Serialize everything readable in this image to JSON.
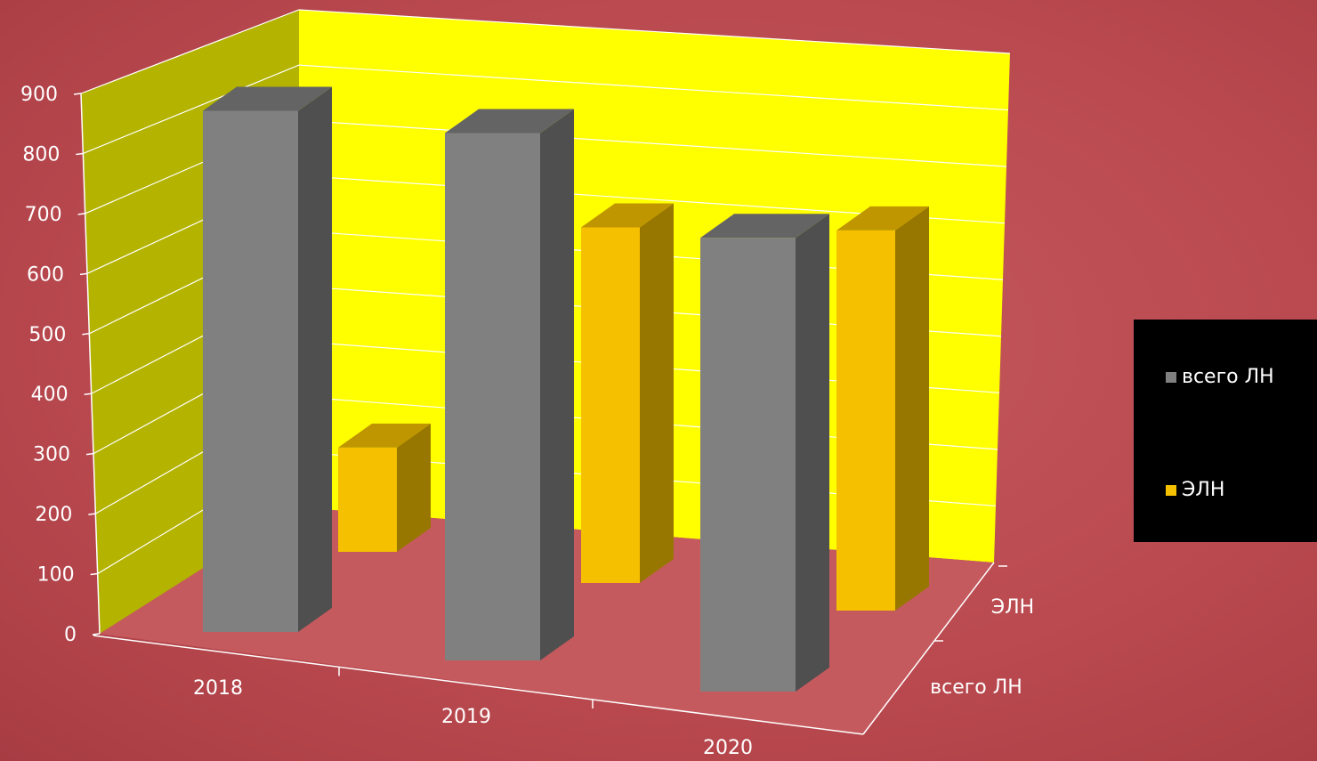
{
  "chart_data": {
    "type": "bar",
    "categories": [
      "2018",
      "2019",
      "2020"
    ],
    "series": [
      {
        "name": "всего ЛН",
        "values": [
          850,
          860,
          740
        ],
        "color": "#808080"
      },
      {
        "name": "ЭЛН",
        "values": [
          170,
          580,
          620
        ],
        "color": "#f5c000"
      }
    ],
    "y_ticks": [
      "0",
      "100",
      "200",
      "300",
      "400",
      "500",
      "600",
      "700",
      "800",
      "900"
    ],
    "ylim": [
      0,
      900
    ],
    "depth_labels": [
      "всего ЛН",
      "ЭЛН"
    ],
    "legend_placement": "right",
    "grid": true,
    "colors": {
      "back_wall": "#ffff00",
      "side_wall": "#b3b300",
      "floor": "#c55a5e",
      "grid_line": "#ffffff"
    }
  }
}
